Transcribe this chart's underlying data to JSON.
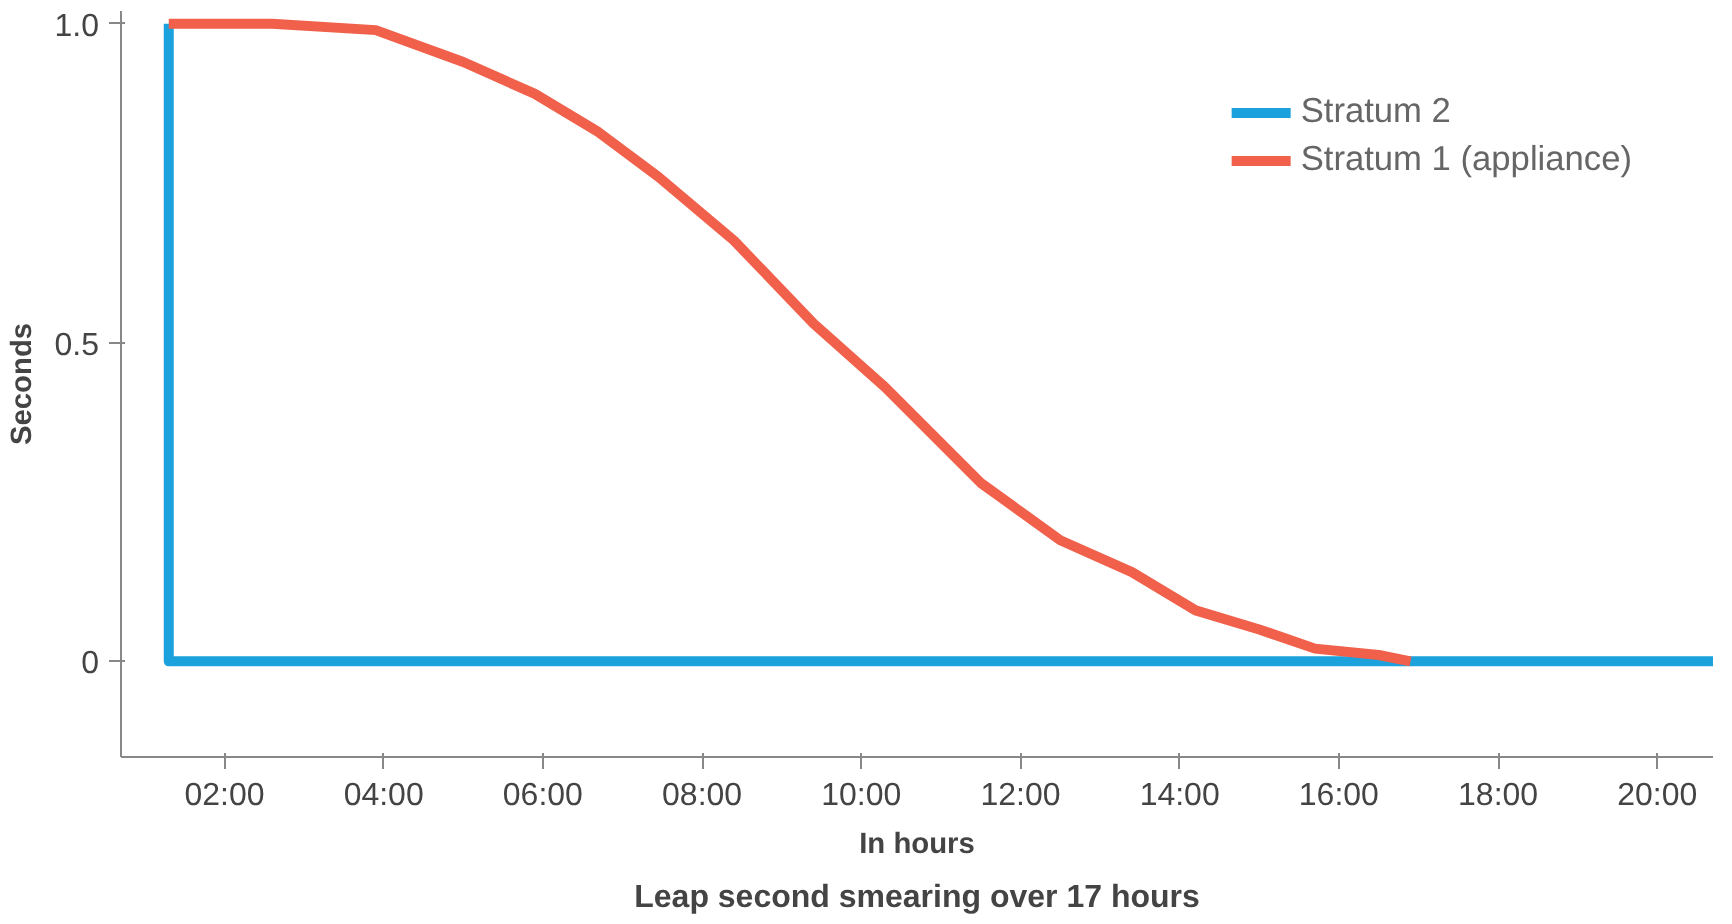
{
  "chart_data": {
    "type": "line",
    "title": "Leap second smearing over 17 hours",
    "xlabel": "In hours",
    "ylabel": "Seconds",
    "xlim": [
      0.7,
      20.7
    ],
    "ylim": [
      -0.15,
      1.02
    ],
    "xticks": [
      {
        "value": 2,
        "label": "02:00"
      },
      {
        "value": 4,
        "label": "04:00"
      },
      {
        "value": 6,
        "label": "06:00"
      },
      {
        "value": 8,
        "label": "08:00"
      },
      {
        "value": 10,
        "label": "10:00"
      },
      {
        "value": 12,
        "label": "12:00"
      },
      {
        "value": 14,
        "label": "14:00"
      },
      {
        "value": 16,
        "label": "16:00"
      },
      {
        "value": 18,
        "label": "18:00"
      },
      {
        "value": 20,
        "label": "20:00"
      }
    ],
    "yticks": [
      0,
      0.5,
      {
        "value": 1,
        "label": "1.0"
      }
    ],
    "series": [
      {
        "name": "Stratum 2",
        "color": "#1ba1dc",
        "x": [
          1.3,
          1.3,
          20.7
        ],
        "values": [
          1.0,
          0,
          0
        ]
      },
      {
        "name": "Stratum 1 (appliance)",
        "color": "#f0604a",
        "x": [
          1.3,
          2.6,
          3.9,
          5.0,
          5.9,
          6.7,
          7.45,
          8.4,
          9.4,
          10.3,
          11.5,
          12.5,
          13.4,
          14.2,
          15.0,
          15.7,
          16.5,
          16.9
        ],
        "values": [
          1.0,
          1.0,
          0.99,
          0.94,
          0.89,
          0.83,
          0.76,
          0.66,
          0.53,
          0.43,
          0.28,
          0.19,
          0.14,
          0.08,
          0.05,
          0.02,
          0.01,
          0
        ]
      }
    ],
    "legend": "top right",
    "grid": false,
    "marker": "none",
    "line_style": "solid"
  }
}
